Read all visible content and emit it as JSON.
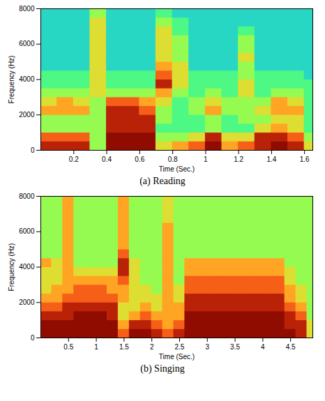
{
  "chart_data": [
    {
      "type": "heatmap",
      "caption": "(a) Reading",
      "x_label": "Time (Sec.)",
      "y_label": "Frequency (Hz)",
      "xlim": [
        0,
        1.65
      ],
      "ylim": [
        0,
        8000
      ],
      "xticks": [
        0.2,
        0.4,
        0.6,
        0.8,
        1,
        1.2,
        1.4,
        1.6
      ],
      "yticks": [
        0,
        2000,
        4000,
        6000,
        8000
      ],
      "color": "turbo",
      "zlim": [
        0,
        10
      ],
      "time": [
        0,
        0.1,
        0.2,
        0.3,
        0.4,
        0.5,
        0.6,
        0.7,
        0.8,
        0.9,
        1,
        1.1,
        1.2,
        1.3,
        1.4,
        1.5,
        1.6
      ],
      "freq": [
        0,
        500,
        1000,
        1500,
        2000,
        2500,
        3000,
        3500,
        4000,
        4500,
        5000,
        5500,
        6000,
        6500,
        7000,
        7500
      ],
      "z": [
        [
          9,
          8,
          5,
          5,
          7,
          6,
          5,
          4,
          4,
          3,
          3,
          3,
          3,
          3,
          3,
          3
        ],
        [
          9,
          8,
          5,
          5,
          7,
          7,
          5,
          4,
          4,
          3,
          3,
          3,
          3,
          3,
          3,
          3
        ],
        [
          9,
          8,
          5,
          5,
          7,
          6,
          5,
          4,
          4,
          3,
          3,
          3,
          3,
          3,
          3,
          3
        ],
        [
          5,
          5,
          5,
          5,
          5,
          5,
          6,
          6,
          6,
          6,
          6,
          6,
          6,
          6,
          6,
          5
        ],
        [
          10,
          10,
          9,
          9,
          9,
          8,
          5,
          4,
          4,
          3,
          3,
          3,
          3,
          3,
          3,
          3
        ],
        [
          10,
          10,
          9,
          9,
          9,
          8,
          5,
          4,
          4,
          3,
          3,
          3,
          3,
          3,
          3,
          3
        ],
        [
          10,
          10,
          9,
          9,
          8,
          7,
          5,
          4,
          4,
          3,
          3,
          3,
          3,
          3,
          3,
          3
        ],
        [
          6,
          5,
          4,
          5,
          5,
          6,
          7,
          9,
          8,
          7,
          6,
          6,
          6,
          6,
          5,
          4
        ],
        [
          7,
          5,
          4,
          4,
          4,
          4,
          5,
          6,
          6,
          6,
          5,
          5,
          5,
          4,
          4,
          3
        ],
        [
          8,
          6,
          4,
          4,
          5,
          5,
          4,
          4,
          4,
          3,
          3,
          3,
          3,
          3,
          3,
          3
        ],
        [
          10,
          9,
          5,
          5,
          7,
          6,
          5,
          4,
          4,
          3,
          3,
          3,
          3,
          3,
          3,
          3
        ],
        [
          7,
          6,
          4,
          4,
          5,
          5,
          4,
          4,
          4,
          3,
          3,
          3,
          3,
          3,
          3,
          3
        ],
        [
          8,
          6,
          4,
          5,
          5,
          5,
          6,
          6,
          5,
          5,
          6,
          5,
          5,
          4,
          3,
          3
        ],
        [
          9,
          9,
          6,
          5,
          6,
          5,
          4,
          4,
          4,
          3,
          3,
          3,
          3,
          3,
          3,
          3
        ],
        [
          10,
          9,
          7,
          6,
          7,
          7,
          5,
          4,
          4,
          3,
          3,
          3,
          3,
          3,
          3,
          3
        ],
        [
          9,
          8,
          6,
          6,
          7,
          6,
          5,
          4,
          4,
          3,
          3,
          3,
          3,
          3,
          3,
          3
        ],
        [
          6,
          5,
          4,
          4,
          4,
          4,
          4,
          4,
          3,
          3,
          3,
          3,
          3,
          3,
          3,
          3
        ]
      ]
    },
    {
      "type": "heatmap",
      "caption": "(b) Singing",
      "x_label": "Time (Sec.)",
      "y_label": "Frequency (Hz)",
      "xlim": [
        0,
        4.9
      ],
      "ylim": [
        0,
        8000
      ],
      "xticks": [
        0.5,
        1,
        1.5,
        2,
        2.5,
        3,
        3.5,
        4,
        4.5
      ],
      "yticks": [
        0,
        2000,
        4000,
        6000,
        8000
      ],
      "color": "turbo",
      "zlim": [
        0,
        10
      ],
      "time": [
        0,
        0.2,
        0.4,
        0.6,
        0.8,
        1,
        1.2,
        1.4,
        1.6,
        1.8,
        2,
        2.2,
        2.4,
        2.6,
        2.8,
        3,
        3.2,
        3.4,
        3.6,
        3.8,
        4,
        4.2,
        4.4,
        4.6,
        4.8
      ],
      "freq": [
        0,
        500,
        1000,
        1500,
        2000,
        2500,
        3000,
        3500,
        4000,
        4500,
        5000,
        5500,
        6000,
        6500,
        7000,
        7500
      ],
      "z": [
        [
          10,
          10,
          9,
          8,
          7,
          6,
          6,
          6,
          7,
          5,
          5,
          5,
          5,
          5,
          5,
          5
        ],
        [
          10,
          10,
          9,
          8,
          7,
          7,
          6,
          6,
          6,
          5,
          5,
          5,
          5,
          5,
          5,
          5
        ],
        [
          10,
          10,
          9,
          9,
          8,
          7,
          7,
          7,
          7,
          7,
          7,
          7,
          7,
          7,
          7,
          7
        ],
        [
          10,
          10,
          10,
          9,
          8,
          8,
          7,
          6,
          5,
          5,
          5,
          5,
          5,
          5,
          5,
          5
        ],
        [
          10,
          10,
          10,
          9,
          8,
          8,
          7,
          6,
          5,
          5,
          5,
          5,
          5,
          5,
          5,
          5
        ],
        [
          10,
          10,
          10,
          9,
          8,
          8,
          7,
          6,
          5,
          5,
          5,
          5,
          5,
          5,
          5,
          5
        ],
        [
          10,
          10,
          9,
          9,
          8,
          7,
          7,
          6,
          5,
          5,
          5,
          5,
          5,
          5,
          5,
          5
        ],
        [
          8,
          7,
          6,
          6,
          7,
          7,
          8,
          9,
          9,
          8,
          7,
          7,
          7,
          7,
          7,
          7
        ],
        [
          10,
          9,
          7,
          6,
          6,
          6,
          6,
          6,
          6,
          5,
          5,
          5,
          5,
          5,
          5,
          5
        ],
        [
          10,
          9,
          8,
          7,
          6,
          6,
          5,
          5,
          5,
          5,
          5,
          5,
          5,
          5,
          5,
          5
        ],
        [
          9,
          8,
          7,
          6,
          6,
          5,
          5,
          5,
          5,
          5,
          5,
          5,
          5,
          5,
          5,
          5
        ],
        [
          8,
          7,
          7,
          7,
          7,
          7,
          7,
          7,
          7,
          7,
          7,
          7,
          7,
          6,
          6,
          6
        ],
        [
          9,
          8,
          7,
          7,
          6,
          6,
          5,
          5,
          5,
          5,
          5,
          5,
          5,
          5,
          5,
          5
        ],
        [
          10,
          10,
          10,
          9,
          9,
          8,
          8,
          7,
          7,
          5,
          5,
          5,
          5,
          5,
          5,
          5
        ],
        [
          10,
          10,
          10,
          9,
          9,
          8,
          8,
          7,
          7,
          5,
          5,
          5,
          5,
          5,
          5,
          5
        ],
        [
          10,
          10,
          10,
          9,
          9,
          8,
          8,
          7,
          7,
          5,
          5,
          5,
          5,
          5,
          5,
          5
        ],
        [
          10,
          10,
          10,
          9,
          9,
          8,
          8,
          7,
          7,
          5,
          5,
          5,
          5,
          5,
          5,
          5
        ],
        [
          10,
          10,
          10,
          9,
          9,
          8,
          8,
          7,
          7,
          5,
          5,
          5,
          5,
          5,
          5,
          5
        ],
        [
          10,
          10,
          10,
          9,
          9,
          8,
          8,
          7,
          7,
          5,
          5,
          5,
          5,
          5,
          5,
          5
        ],
        [
          10,
          10,
          10,
          9,
          9,
          8,
          8,
          7,
          7,
          5,
          5,
          5,
          5,
          5,
          5,
          5
        ],
        [
          10,
          10,
          10,
          9,
          9,
          8,
          8,
          7,
          7,
          5,
          5,
          5,
          5,
          5,
          5,
          5
        ],
        [
          10,
          10,
          10,
          9,
          9,
          8,
          8,
          7,
          7,
          5,
          5,
          5,
          5,
          5,
          5,
          5
        ],
        [
          10,
          9,
          9,
          8,
          7,
          7,
          6,
          6,
          5,
          5,
          5,
          5,
          5,
          5,
          5,
          5
        ],
        [
          9,
          9,
          8,
          7,
          6,
          6,
          5,
          5,
          5,
          5,
          5,
          5,
          5,
          5,
          5,
          5
        ],
        [
          6,
          6,
          5,
          5,
          5,
          5,
          5,
          5,
          5,
          5,
          5,
          5,
          5,
          5,
          5,
          5
        ]
      ]
    }
  ]
}
